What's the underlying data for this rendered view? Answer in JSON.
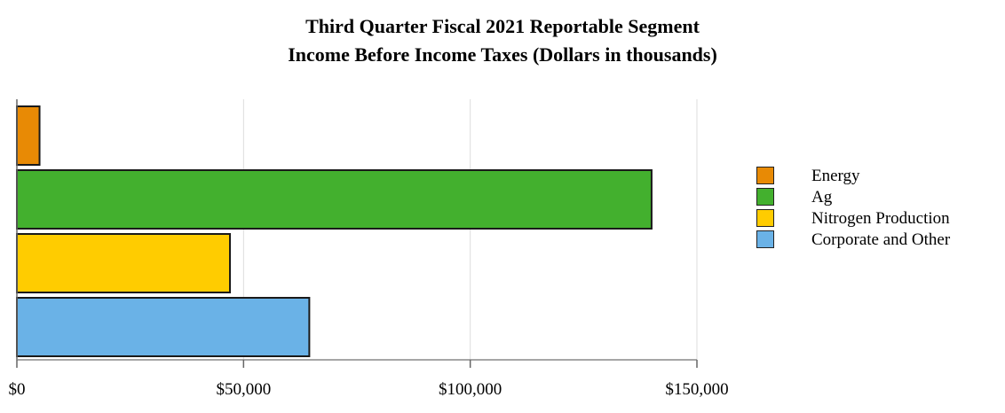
{
  "chart_data": {
    "type": "bar",
    "orientation": "horizontal",
    "title_lines": [
      "Third Quarter Fiscal 2021 Reportable Segment",
      "Income Before Income Taxes (Dollars in thousands)"
    ],
    "series": [
      {
        "name": "Energy",
        "value": 5000,
        "color": "#E88A05"
      },
      {
        "name": "Ag",
        "value": 140000,
        "color": "#43B02E"
      },
      {
        "name": "Nitrogen Production",
        "value": 47000,
        "color": "#FFCC00"
      },
      {
        "name": "Corporate and Other",
        "value": 64500,
        "color": "#6AB2E7"
      }
    ],
    "xlim": [
      0,
      150000
    ],
    "x_ticks": [
      0,
      50000,
      100000,
      150000
    ],
    "x_tick_labels": [
      "$0",
      "$50,000",
      "$100,000",
      "$150,000"
    ],
    "grid": true,
    "legend_position": "right"
  }
}
